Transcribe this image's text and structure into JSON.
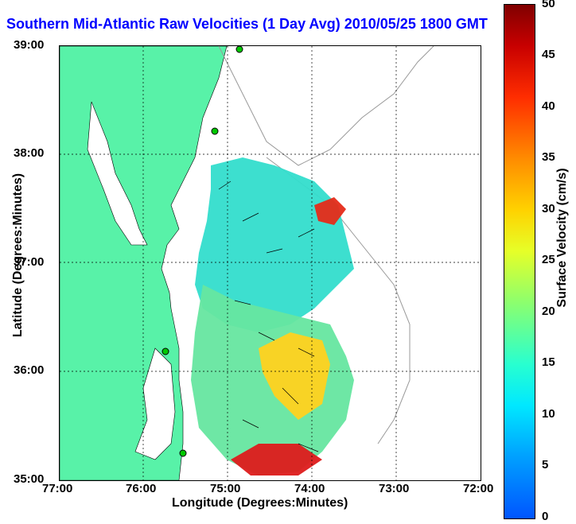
{
  "title": "Southern Mid-Atlantic Raw Velocities (1 Day Avg) 2010/05/25 1800 GMT",
  "xlabel": "Longitude (Degrees:Minutes)",
  "ylabel": "Latitude (Degrees:Minutes)",
  "colorbar_label": "Surface Velocity (cm/s)",
  "x_ticks": [
    "77:00",
    "76:00",
    "75:00",
    "74:00",
    "73:00",
    "72:00"
  ],
  "y_ticks": [
    "39:00",
    "38:00",
    "37:00",
    "36:00",
    "35:00"
  ],
  "colorbar_ticks": [
    "50",
    "45",
    "40",
    "35",
    "30",
    "25",
    "20",
    "15",
    "10",
    "5",
    "0"
  ],
  "colors": {
    "title": "#0000ff",
    "land": "#58f2a8",
    "station": "#00c800",
    "arrows": "#000000"
  }
}
